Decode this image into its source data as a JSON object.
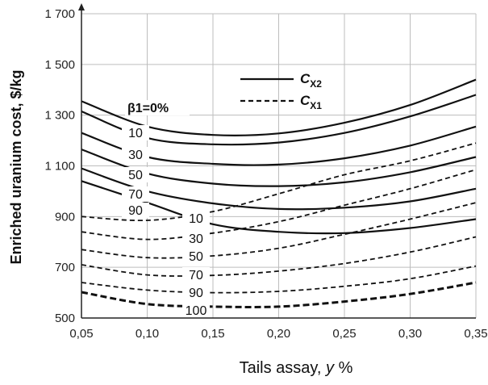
{
  "chart_data": {
    "type": "line",
    "title": "",
    "xlabel": "Tails assay, y %",
    "ylabel": "Enriched uranium cost, $/kg",
    "xlim": [
      0.05,
      0.35
    ],
    "ylim": [
      500,
      1700
    ],
    "x_ticks": [
      0.05,
      0.1,
      0.15,
      0.2,
      0.25,
      0.3,
      0.35
    ],
    "x_tick_labels": [
      "0,05",
      "0,10",
      "0,15",
      "0,20",
      "0,25",
      "0,30",
      "0,35"
    ],
    "y_ticks": [
      500,
      700,
      900,
      1100,
      1300,
      1500,
      1700
    ],
    "y_tick_labels": [
      "500",
      "700",
      "900",
      "1 100",
      "1 300",
      "1 500",
      "1 700"
    ],
    "grid": true,
    "legend": {
      "position": "top-center",
      "entries": [
        {
          "symbol": "C",
          "subscript": "X2",
          "style": "solid"
        },
        {
          "symbol": "C",
          "subscript": "X1",
          "style": "dashed"
        }
      ]
    },
    "x": [
      0.05,
      0.1,
      0.15,
      0.2,
      0.25,
      0.3,
      0.35
    ],
    "series": [
      {
        "family": "CX2",
        "label": "β1=0%",
        "style": "solid",
        "values": [
          1355,
          1255,
          1222,
          1228,
          1270,
          1340,
          1440
        ]
      },
      {
        "family": "CX2",
        "label": "10",
        "style": "solid",
        "values": [
          1315,
          1210,
          1185,
          1192,
          1230,
          1295,
          1380
        ]
      },
      {
        "family": "CX2",
        "label": "30",
        "style": "solid",
        "values": [
          1230,
          1135,
          1108,
          1105,
          1130,
          1180,
          1255
        ]
      },
      {
        "family": "CX2",
        "label": "50",
        "style": "solid",
        "values": [
          1165,
          1070,
          1030,
          1020,
          1035,
          1075,
          1135
        ]
      },
      {
        "family": "CX2",
        "label": "70",
        "style": "solid",
        "values": [
          1090,
          1000,
          952,
          930,
          935,
          960,
          1010
        ]
      },
      {
        "family": "CX2",
        "label": "90",
        "style": "solid",
        "values": [
          1040,
          955,
          870,
          840,
          835,
          855,
          890
        ]
      },
      {
        "family": "CX1",
        "label": "10",
        "style": "dashed",
        "values": [
          900,
          885,
          920,
          990,
          1065,
          1120,
          1190
        ]
      },
      {
        "family": "CX1",
        "label": "30",
        "style": "dashed",
        "values": [
          840,
          810,
          835,
          880,
          945,
          1010,
          1085
        ]
      },
      {
        "family": "CX1",
        "label": "50",
        "style": "dashed",
        "values": [
          770,
          738,
          745,
          775,
          830,
          890,
          955
        ]
      },
      {
        "family": "CX1",
        "label": "70",
        "style": "dashed",
        "values": [
          710,
          670,
          668,
          685,
          715,
          760,
          820
        ]
      },
      {
        "family": "CX1",
        "label": "90",
        "style": "dashed",
        "values": [
          640,
          610,
          600,
          605,
          625,
          655,
          705
        ]
      },
      {
        "family": "CX1",
        "label": "100",
        "style": "dashed-bold",
        "values": [
          602,
          555,
          545,
          545,
          565,
          595,
          640
        ]
      }
    ]
  }
}
